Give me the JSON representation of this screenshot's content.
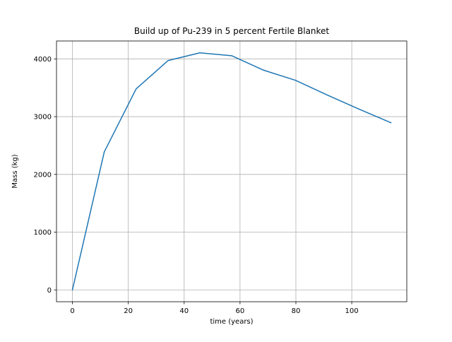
{
  "chart_data": {
    "type": "line",
    "title": "Build up of Pu-239 in 5 percent Fertile Blanket",
    "xlabel": "time (years)",
    "ylabel": "Mass (kg)",
    "xlim": [
      -5.7,
      119.7
    ],
    "ylim": [
      -205,
      4310
    ],
    "xticks": [
      0,
      20,
      40,
      60,
      80,
      100
    ],
    "yticks": [
      0,
      1000,
      2000,
      3000,
      4000
    ],
    "grid": true,
    "legend": "none",
    "series": [
      {
        "color": "#1f77b4",
        "x": [
          0,
          11.4,
          22.8,
          34.2,
          45.6,
          57.0,
          68.4,
          79.8,
          91.2,
          102.6,
          114.0
        ],
        "y": [
          0,
          2390,
          3480,
          3970,
          4105,
          4055,
          3805,
          3630,
          3375,
          3130,
          2895
        ]
      }
    ]
  }
}
